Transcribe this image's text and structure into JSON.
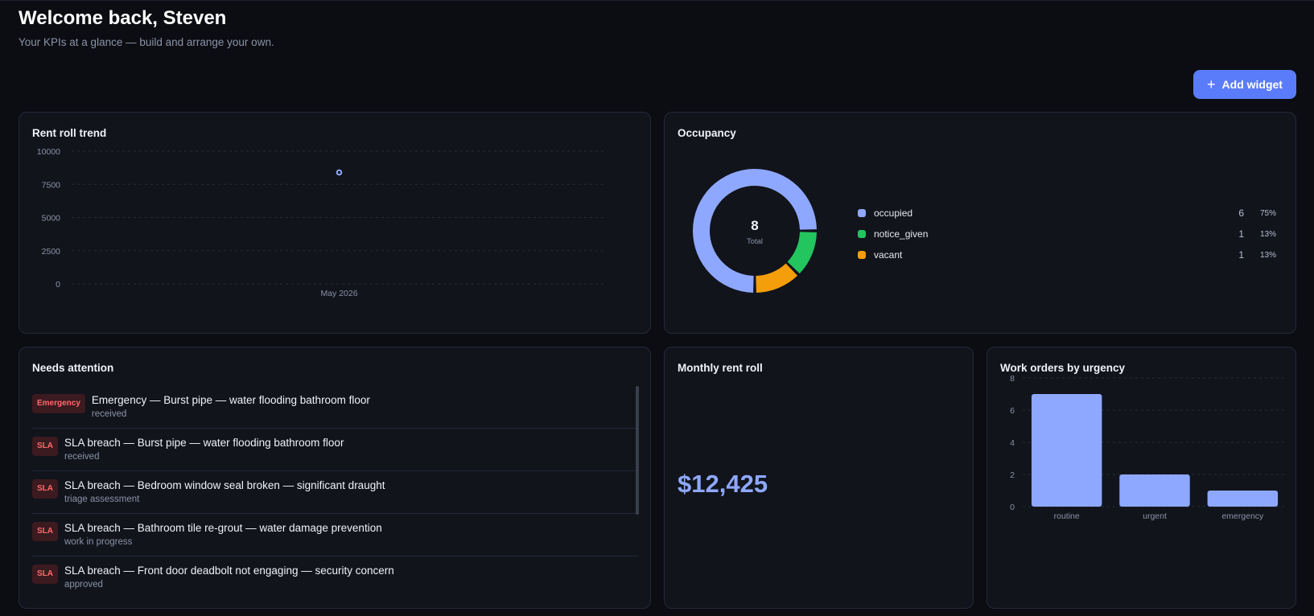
{
  "header": {
    "title": "Welcome back, Steven",
    "subtitle": "Your KPIs at a glance — build and arrange your own."
  },
  "toolbar": {
    "add_widget_label": "Add widget",
    "add_icon": "plus-icon"
  },
  "rent_trend": {
    "title": "Rent roll trend",
    "chart_data": {
      "type": "scatter",
      "x": [
        "May 2026"
      ],
      "y": [
        8400
      ],
      "ylim": [
        0,
        10000
      ],
      "yticks": [
        "10000",
        "7500",
        "5000",
        "2500",
        "0"
      ],
      "grid": true,
      "color": "#8fa8ff"
    }
  },
  "occupancy": {
    "title": "Occupancy",
    "total_value": "8",
    "total_label": "Total",
    "chart_data": {
      "type": "pie",
      "categories": [
        "occupied",
        "notice_given",
        "vacant"
      ],
      "values": [
        6,
        1,
        1
      ],
      "percents": [
        "75%",
        "13%",
        "13%"
      ],
      "colors": [
        "#8fa8ff",
        "#22c55e",
        "#f59e0b"
      ]
    }
  },
  "attention": {
    "title": "Needs attention",
    "items": [
      {
        "badge": "Emergency",
        "title": "Emergency — Burst pipe — water flooding bathroom floor",
        "status": "received"
      },
      {
        "badge": "SLA",
        "title": "SLA breach — Burst pipe — water flooding bathroom floor",
        "status": "received"
      },
      {
        "badge": "SLA",
        "title": "SLA breach — Bedroom window seal broken — significant draught",
        "status": "triage assessment"
      },
      {
        "badge": "SLA",
        "title": "SLA breach — Bathroom tile re-grout — water damage prevention",
        "status": "work in progress"
      },
      {
        "badge": "SLA",
        "title": "SLA breach — Front door deadbolt not engaging — security concern",
        "status": "approved"
      }
    ]
  },
  "monthly": {
    "title": "Monthly rent roll",
    "value": "$12,425"
  },
  "workorders": {
    "title": "Work orders by urgency",
    "chart_data": {
      "type": "bar",
      "categories": [
        "routine",
        "urgent",
        "emergency"
      ],
      "values": [
        7,
        2,
        1
      ],
      "ylim": [
        0,
        8
      ],
      "yticks": [
        "8",
        "6",
        "4",
        "2",
        "0"
      ],
      "grid": true,
      "color": "#8fa8ff"
    }
  }
}
